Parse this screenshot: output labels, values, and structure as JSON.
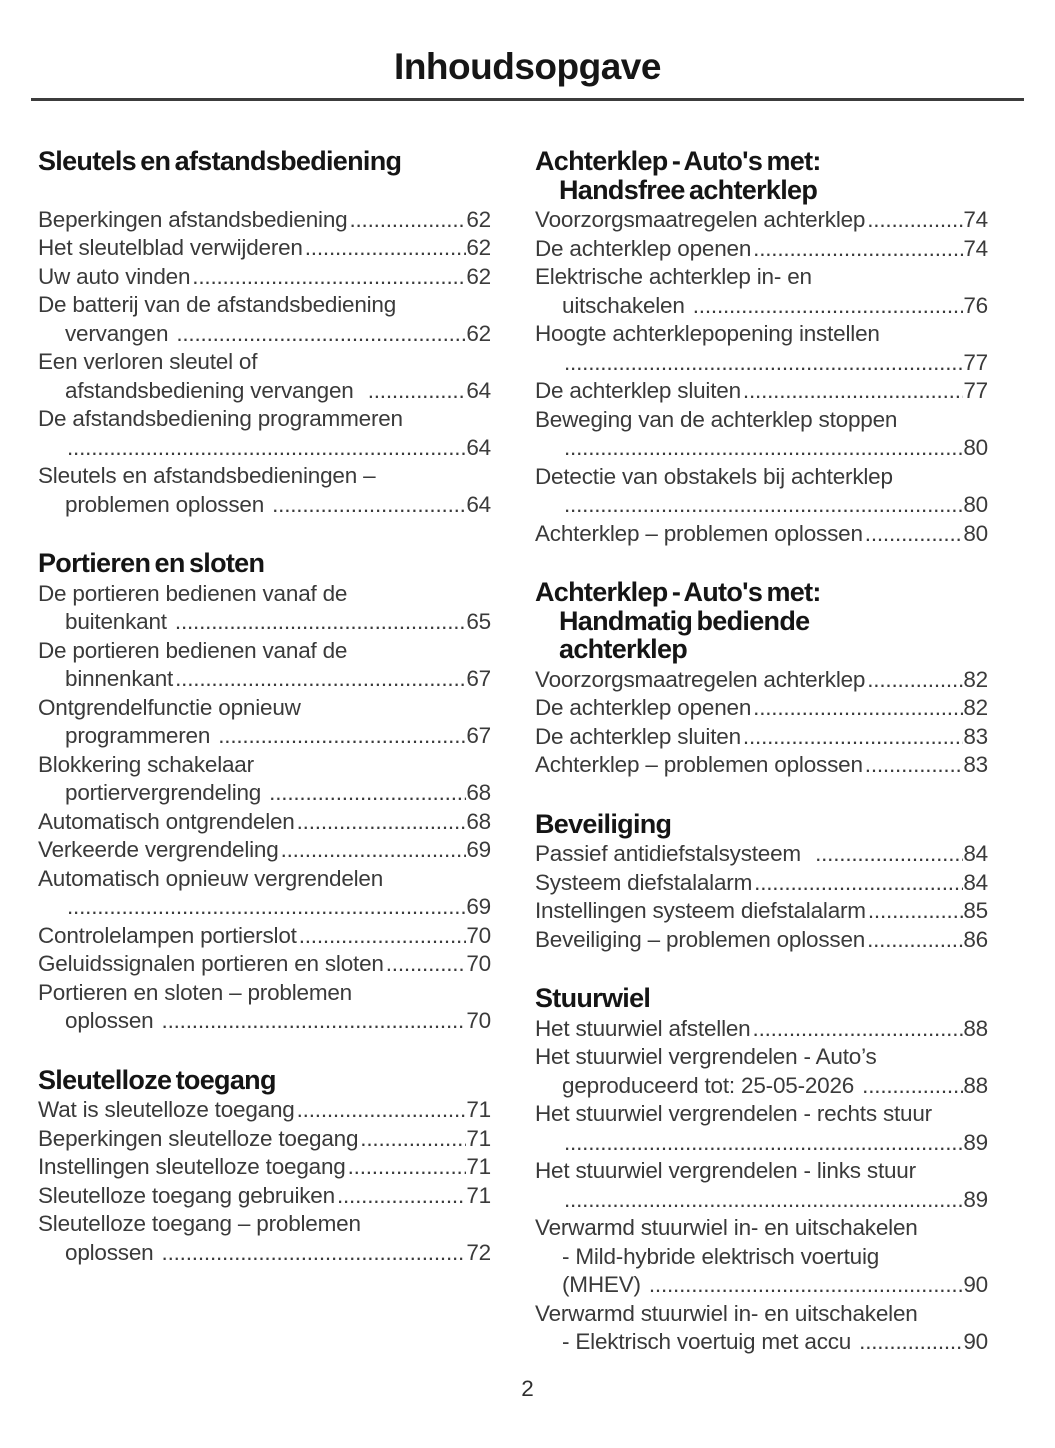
{
  "page_title": "Inhoudsopgave",
  "page_number": "2",
  "columns": [
    {
      "side": "left",
      "sections": [
        {
          "heading_lines": [
            "Sleutels en afstandsbediening"
          ],
          "entries": [
            {
              "lines": [
                "Beperkingen afstandsbediening"
              ],
              "page": "62"
            },
            {
              "lines": [
                "Het sleutelblad verwijderen"
              ],
              "page": "62"
            },
            {
              "lines": [
                "Uw auto vinden"
              ],
              "page": "62"
            },
            {
              "lines": [
                "De batterij van de afstandsbediening",
                "vervangen "
              ],
              "page": "62"
            },
            {
              "lines": [
                "Een verloren sleutel of",
                "afstandsbediening vervangen  "
              ],
              "page": "64"
            },
            {
              "lines": [
                "De afstandsbediening programmeren",
                ""
              ],
              "page": "64"
            },
            {
              "lines": [
                "Sleutels en afstandsbedieningen –",
                "problemen oplossen "
              ],
              "page": "64"
            }
          ]
        },
        {
          "heading_lines": [
            "Portieren en sloten"
          ],
          "entries": [
            {
              "lines": [
                "De portieren bedienen vanaf de",
                "buitenkant "
              ],
              "page": "65"
            },
            {
              "lines": [
                "De portieren bedienen vanaf de",
                "binnenkant"
              ],
              "page": "67"
            },
            {
              "lines": [
                "Ontgrendelfunctie opnieuw",
                "programmeren "
              ],
              "page": "67"
            },
            {
              "lines": [
                "Blokkering schakelaar",
                "portiervergrendeling "
              ],
              "page": "68"
            },
            {
              "lines": [
                "Automatisch ontgrendelen"
              ],
              "page": "68"
            },
            {
              "lines": [
                "Verkeerde vergrendeling"
              ],
              "page": "69"
            },
            {
              "lines": [
                "Automatisch opnieuw vergrendelen",
                ""
              ],
              "page": "69"
            },
            {
              "lines": [
                "Controlelampen portierslot"
              ],
              "page": "70"
            },
            {
              "lines": [
                "Geluidssignalen portieren en sloten"
              ],
              "page": "70"
            },
            {
              "lines": [
                "Portieren en sloten – problemen",
                "oplossen "
              ],
              "page": "70"
            }
          ]
        },
        {
          "heading_lines": [
            "Sleutelloze toegang"
          ],
          "entries": [
            {
              "lines": [
                "Wat is sleutelloze toegang"
              ],
              "page": "71"
            },
            {
              "lines": [
                "Beperkingen sleutelloze toegang"
              ],
              "page": "71"
            },
            {
              "lines": [
                "Instellingen sleutelloze toegang"
              ],
              "page": "71"
            },
            {
              "lines": [
                "Sleutelloze toegang gebruiken"
              ],
              "page": "71"
            },
            {
              "lines": [
                "Sleutelloze toegang – problemen",
                "oplossen "
              ],
              "page": "72"
            }
          ]
        }
      ]
    },
    {
      "side": "right",
      "sections": [
        {
          "heading_lines": [
            "Achterklep - Auto's met:",
            "Handsfree achterklep"
          ],
          "entries": [
            {
              "lines": [
                "Voorzorgsmaatregelen achterklep"
              ],
              "page": "74"
            },
            {
              "lines": [
                "De achterklep openen"
              ],
              "page": "74"
            },
            {
              "lines": [
                "Elektrische achterklep in- en",
                "uitschakelen "
              ],
              "page": "76"
            },
            {
              "lines": [
                "Hoogte achterklepopening instellen",
                ""
              ],
              "page": "77"
            },
            {
              "lines": [
                "De achterklep sluiten"
              ],
              "page": "77"
            },
            {
              "lines": [
                "Beweging van de achterklep stoppen",
                ""
              ],
              "page": "80"
            },
            {
              "lines": [
                "Detectie van obstakels bij achterklep",
                ""
              ],
              "page": "80"
            },
            {
              "lines": [
                "Achterklep – problemen oplossen"
              ],
              "page": "80"
            }
          ]
        },
        {
          "heading_lines": [
            "Achterklep - Auto's met:",
            "Handmatig bediende",
            "achterklep"
          ],
          "entries": [
            {
              "lines": [
                "Voorzorgsmaatregelen achterklep"
              ],
              "page": "82"
            },
            {
              "lines": [
                "De achterklep openen"
              ],
              "page": "82"
            },
            {
              "lines": [
                "De achterklep sluiten"
              ],
              "page": "83"
            },
            {
              "lines": [
                "Achterklep – problemen oplossen"
              ],
              "page": "83"
            }
          ]
        },
        {
          "heading_lines": [
            "Beveiliging"
          ],
          "entries": [
            {
              "lines": [
                "Passief antidiefstalsysteem  "
              ],
              "page": "84"
            },
            {
              "lines": [
                "Systeem diefstalalarm"
              ],
              "page": "84"
            },
            {
              "lines": [
                "Instellingen systeem diefstalalarm"
              ],
              "page": "85"
            },
            {
              "lines": [
                "Beveiliging – problemen oplossen"
              ],
              "page": "86"
            }
          ]
        },
        {
          "heading_lines": [
            "Stuurwiel"
          ],
          "entries": [
            {
              "lines": [
                "Het stuurwiel afstellen"
              ],
              "page": "88"
            },
            {
              "lines": [
                "Het stuurwiel vergrendelen - Auto’s",
                "geproduceerd tot: 25-05-2026 "
              ],
              "page": "88"
            },
            {
              "lines": [
                "Het stuurwiel vergrendelen - rechts stuur",
                ""
              ],
              "page": "89"
            },
            {
              "lines": [
                "Het stuurwiel vergrendelen - links stuur",
                ""
              ],
              "page": "89"
            },
            {
              "lines": [
                "Verwarmd stuurwiel in- en uitschakelen",
                "- Mild-hybride elektrisch voertuig",
                "(MHEV) "
              ],
              "page": "90"
            },
            {
              "lines": [
                "Verwarmd stuurwiel in- en uitschakelen",
                "- Elektrisch voertuig met accu "
              ],
              "page": "90"
            }
          ]
        }
      ]
    }
  ]
}
